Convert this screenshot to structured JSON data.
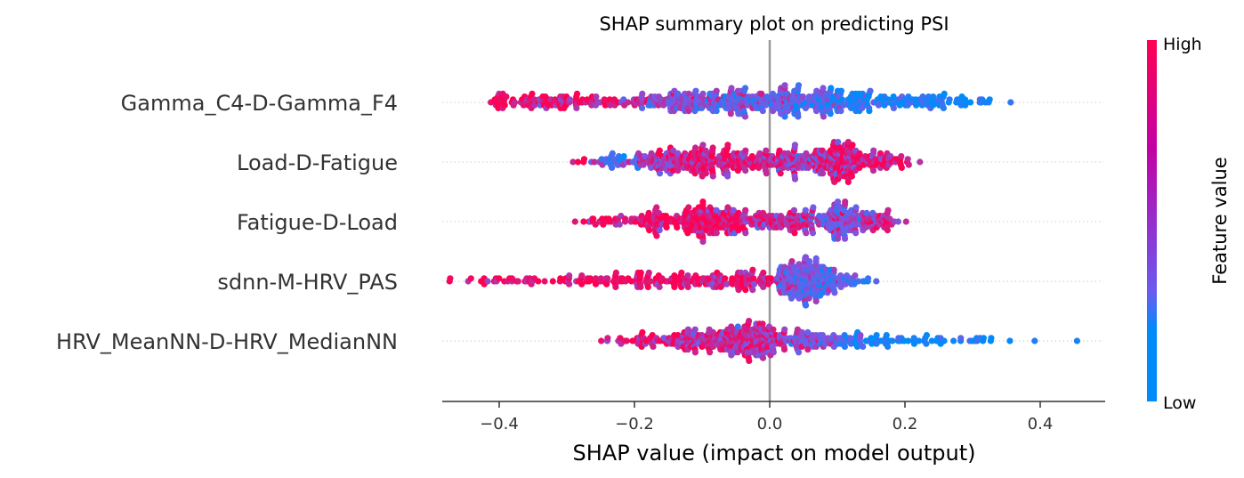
{
  "chart_data": {
    "type": "scatter",
    "subtype": "shap-beeswarm",
    "title": "SHAP summary plot on predicting PSI",
    "xlabel": "SHAP value (impact on model output)",
    "xlim": [
      -0.48,
      0.5
    ],
    "xticks": [
      {
        "value": -0.4,
        "label": "−0.4"
      },
      {
        "value": -0.2,
        "label": "−0.2"
      },
      {
        "value": 0.0,
        "label": "0.0"
      },
      {
        "value": 0.2,
        "label": "0.2"
      },
      {
        "value": 0.4,
        "label": "0.4"
      }
    ],
    "features": [
      {
        "name": "Gamma_C4-D-Gamma_F4",
        "clusters": [
          {
            "c": -0.4,
            "s": 0.006,
            "n": 18,
            "f": 0.97
          },
          {
            "c": -0.33,
            "s": 0.03,
            "n": 60,
            "f": 0.92
          },
          {
            "c": -0.24,
            "s": 0.04,
            "n": 45,
            "f": 0.82
          },
          {
            "c": -0.14,
            "s": 0.035,
            "n": 80,
            "f": 0.55
          },
          {
            "c": -0.05,
            "s": 0.04,
            "n": 120,
            "f": 0.45
          },
          {
            "c": 0.04,
            "s": 0.04,
            "n": 110,
            "f": 0.38
          },
          {
            "c": 0.13,
            "s": 0.04,
            "n": 95,
            "f": 0.12
          },
          {
            "c": 0.23,
            "s": 0.04,
            "n": 60,
            "f": 0.06
          },
          {
            "c": 0.31,
            "s": 0.01,
            "n": 5,
            "f": 0.03
          }
        ]
      },
      {
        "name": "Load-D-Fatigue",
        "clusters": [
          {
            "c": -0.27,
            "s": 0.01,
            "n": 6,
            "f": 0.85
          },
          {
            "c": -0.23,
            "s": 0.02,
            "n": 25,
            "f": 0.2
          },
          {
            "c": -0.16,
            "s": 0.03,
            "n": 70,
            "f": 0.65
          },
          {
            "c": -0.1,
            "s": 0.035,
            "n": 110,
            "f": 0.88
          },
          {
            "c": -0.02,
            "s": 0.04,
            "n": 90,
            "f": 0.78
          },
          {
            "c": 0.06,
            "s": 0.03,
            "n": 70,
            "f": 0.6
          },
          {
            "c": 0.11,
            "s": 0.025,
            "n": 120,
            "f": 0.9
          },
          {
            "c": 0.17,
            "s": 0.02,
            "n": 40,
            "f": 0.9
          }
        ]
      },
      {
        "name": "Fatigue-D-Load",
        "clusters": [
          {
            "c": -0.24,
            "s": 0.02,
            "n": 25,
            "f": 0.93
          },
          {
            "c": -0.16,
            "s": 0.03,
            "n": 70,
            "f": 0.9
          },
          {
            "c": -0.09,
            "s": 0.03,
            "n": 120,
            "f": 0.92
          },
          {
            "c": -0.02,
            "s": 0.035,
            "n": 60,
            "f": 0.75
          },
          {
            "c": 0.04,
            "s": 0.03,
            "n": 60,
            "f": 0.85
          },
          {
            "c": 0.1,
            "s": 0.02,
            "n": 110,
            "f": 0.45
          },
          {
            "c": 0.16,
            "s": 0.02,
            "n": 40,
            "f": 0.78
          }
        ]
      },
      {
        "name": "sdnn-M-HRV_PAS",
        "clusters": [
          {
            "c": -0.4,
            "s": 0.03,
            "n": 20,
            "f": 0.98
          },
          {
            "c": -0.28,
            "s": 0.05,
            "n": 50,
            "f": 0.97
          },
          {
            "c": -0.14,
            "s": 0.05,
            "n": 80,
            "f": 0.93
          },
          {
            "c": -0.03,
            "s": 0.03,
            "n": 70,
            "f": 0.85
          },
          {
            "c": 0.04,
            "s": 0.02,
            "n": 100,
            "f": 0.5
          },
          {
            "c": 0.07,
            "s": 0.02,
            "n": 90,
            "f": 0.35
          },
          {
            "c": 0.12,
            "s": 0.02,
            "n": 20,
            "f": 0.3
          }
        ]
      },
      {
        "name": "HRV_MeanNN-D-HRV_MedianNN",
        "clusters": [
          {
            "c": -0.2,
            "s": 0.02,
            "n": 20,
            "f": 0.85
          },
          {
            "c": -0.12,
            "s": 0.035,
            "n": 90,
            "f": 0.75
          },
          {
            "c": -0.04,
            "s": 0.035,
            "n": 160,
            "f": 0.78
          },
          {
            "c": 0.05,
            "s": 0.035,
            "n": 80,
            "f": 0.55
          },
          {
            "c": 0.14,
            "s": 0.035,
            "n": 50,
            "f": 0.1
          },
          {
            "c": 0.25,
            "s": 0.03,
            "n": 20,
            "f": 0.04
          },
          {
            "c": 0.32,
            "s": 0.02,
            "n": 10,
            "f": 0.02
          },
          {
            "c": 0.39,
            "s": 0.005,
            "n": 1,
            "f": 0.02
          },
          {
            "c": 0.45,
            "s": 0.005,
            "n": 1,
            "f": 0.02
          }
        ]
      }
    ],
    "colorbar": {
      "label": "Feature value",
      "high_label": "High",
      "low_label": "Low",
      "low_color": "#008bfb",
      "mid_color": "#7d57e6",
      "high_color": "#ff0052"
    },
    "zero_line_color": "#999999",
    "grid": "dotted row guides"
  }
}
